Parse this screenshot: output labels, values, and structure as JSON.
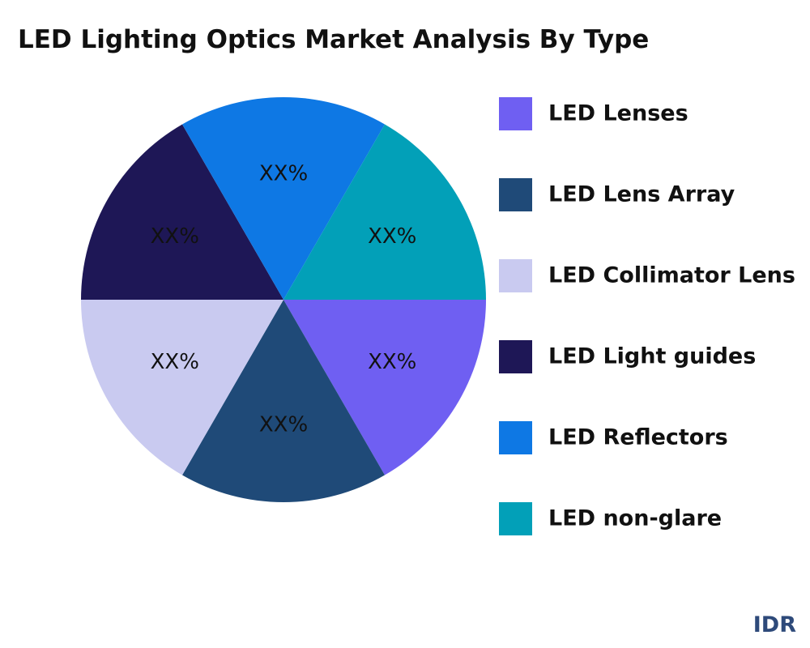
{
  "chart_data": {
    "type": "pie",
    "title": "LED Lighting Optics Market Analysis By Type",
    "categories": [
      "LED Lenses",
      "LED Lens Array",
      "LED Collimator Lens",
      "LED Light guides",
      "LED Reflectors",
      "LED non-glare"
    ],
    "values": [
      16.67,
      16.67,
      16.67,
      16.67,
      16.67,
      16.67
    ],
    "value_labels": [
      "XX%",
      "XX%",
      "XX%",
      "XX%",
      "XX%",
      "XX%"
    ],
    "colors": [
      "#6f5ff2",
      "#1f4a78",
      "#c9caf0",
      "#1e1756",
      "#0e78e4",
      "#02a0b8"
    ],
    "legend": "right"
  },
  "watermark": "IDR"
}
